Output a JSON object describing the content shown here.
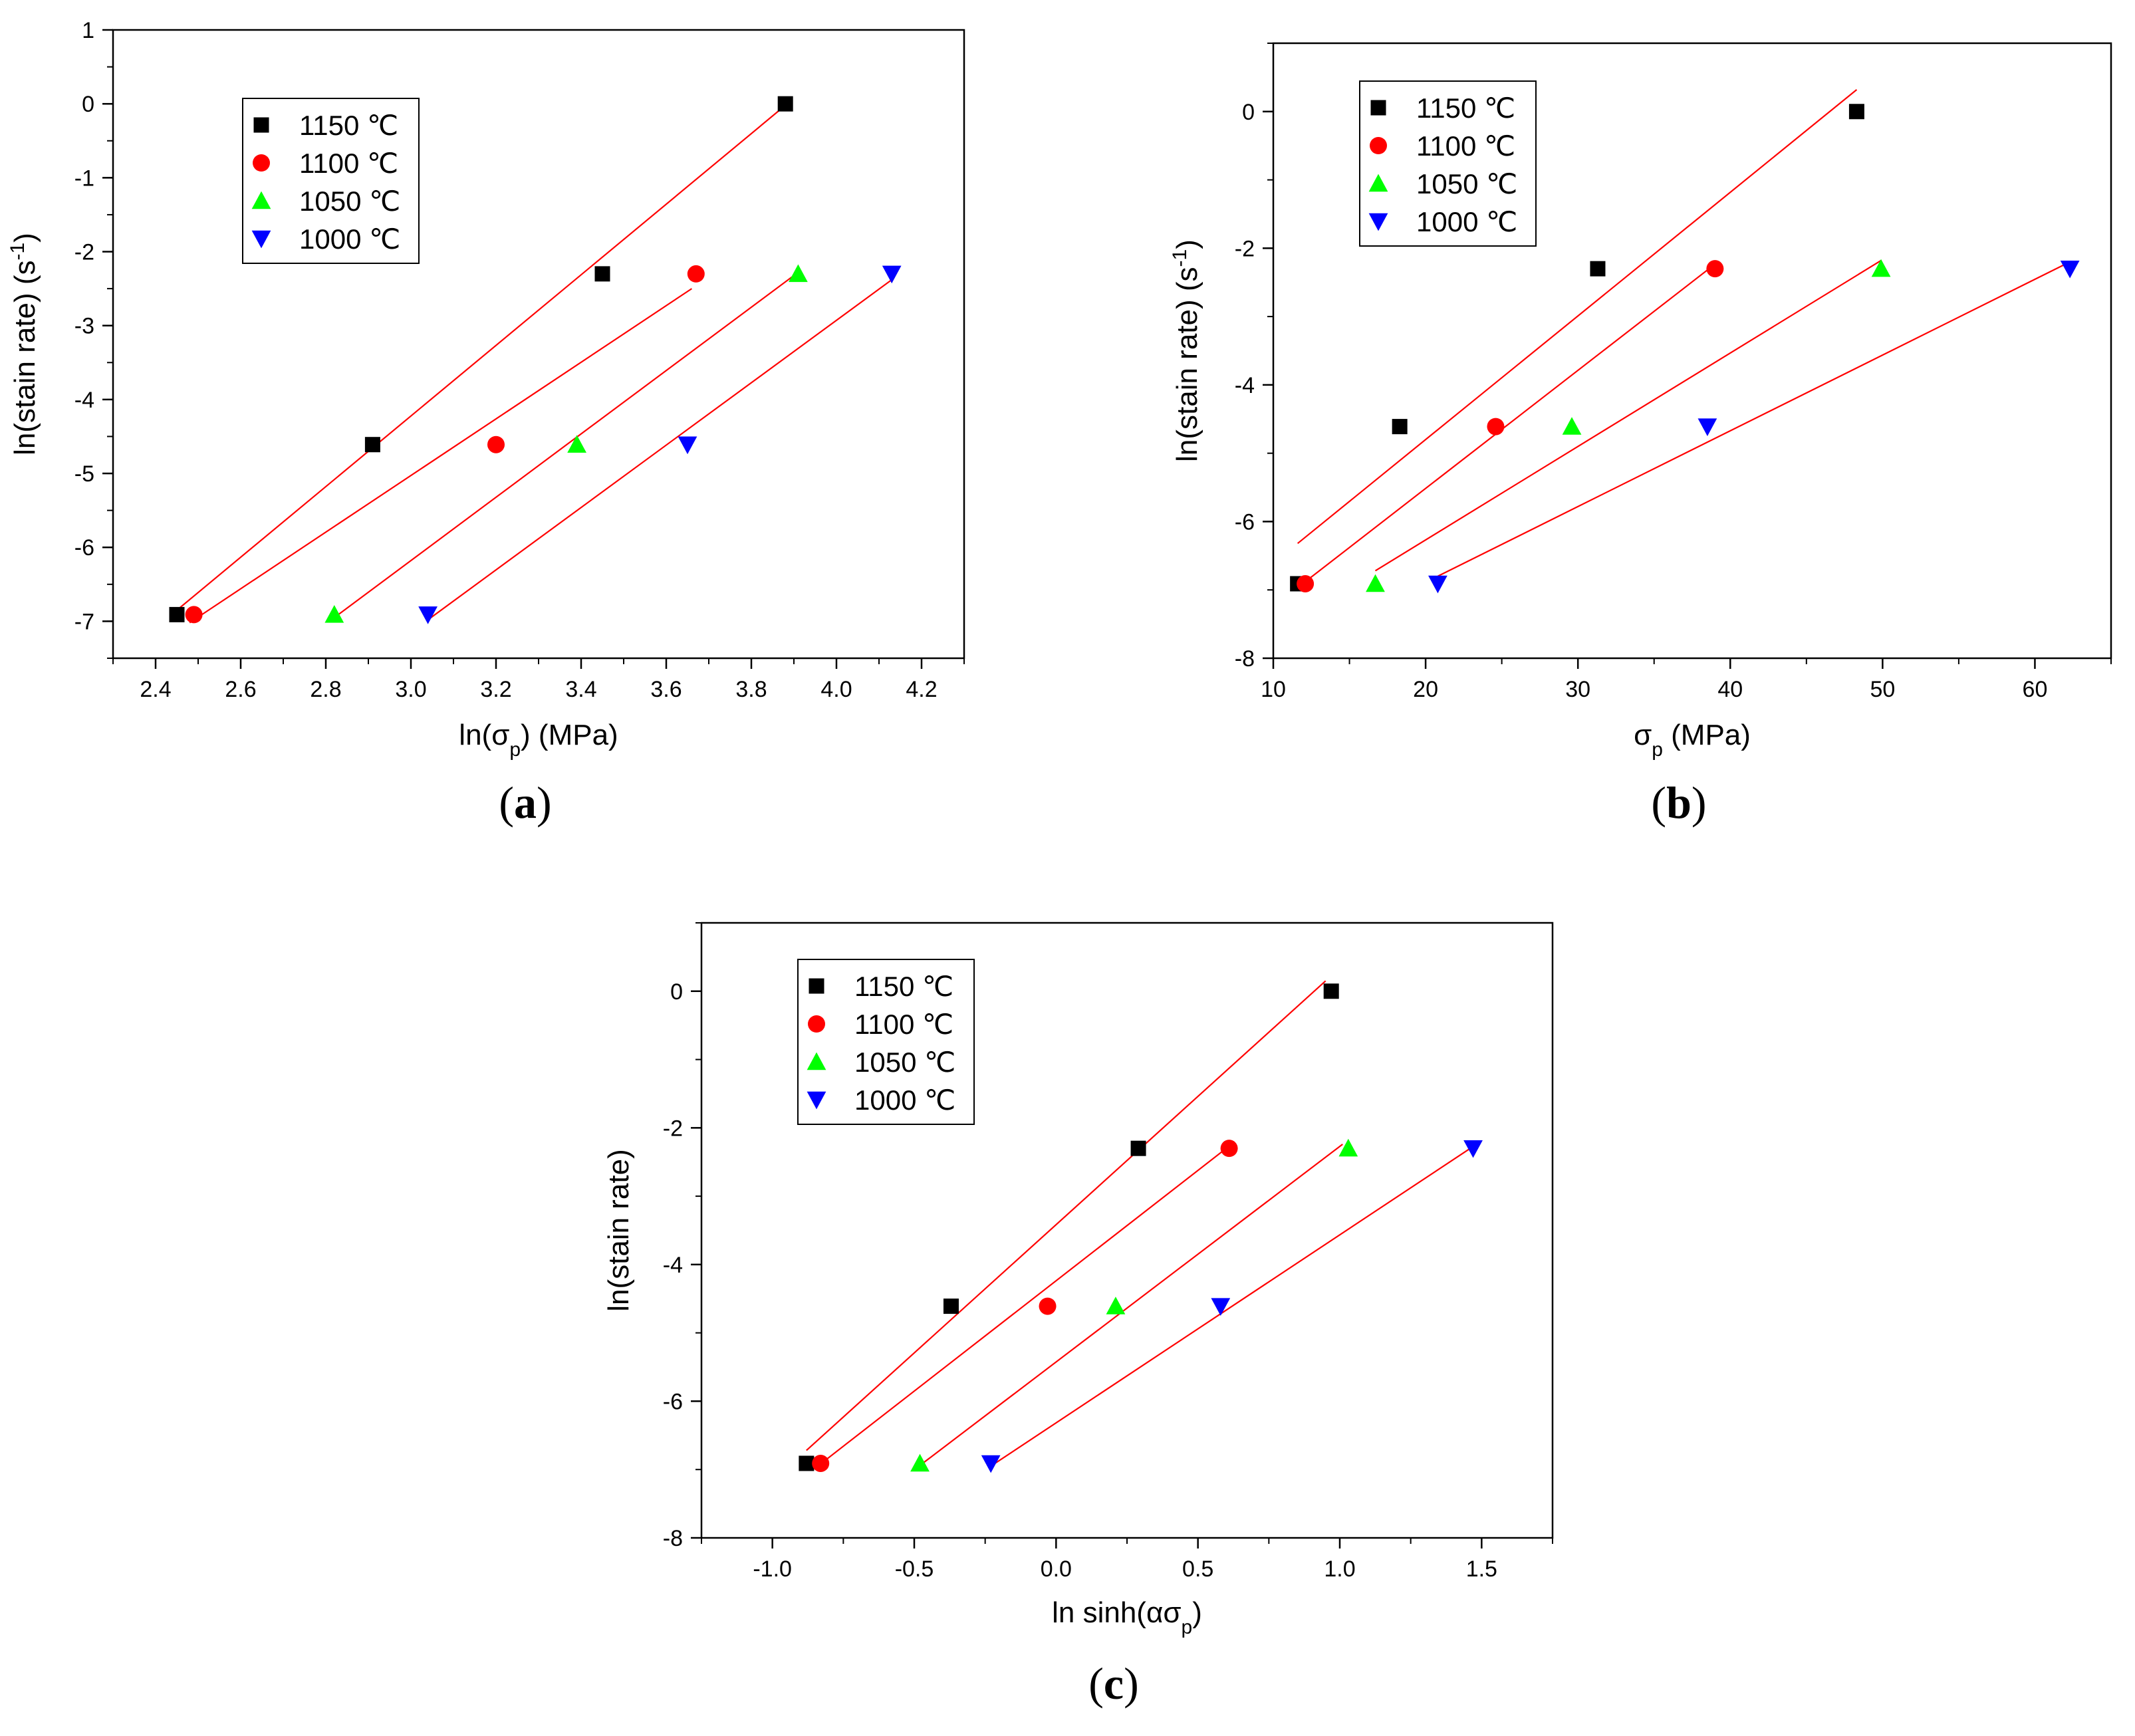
{
  "colors": {
    "s1150": "#000000",
    "s1100": "#ff0000",
    "s1050": "#00ff00",
    "s1000": "#0000ff",
    "fit": "#ff0000"
  },
  "chart_data": [
    {
      "type": "scatter",
      "panel_label": "(a)",
      "xlabel": "ln(σp) (MPa)",
      "ylabel": "ln(stain rate) (s-1)",
      "xlim": [
        2.3,
        4.3
      ],
      "ylim": [
        -7.5,
        1
      ],
      "xticks": [
        2.4,
        2.6,
        2.8,
        3.0,
        3.2,
        3.4,
        3.6,
        3.8,
        4.0,
        4.2
      ],
      "xtick_labels": [
        "2.4",
        "2.6",
        "2.8",
        "3.0",
        "3.2",
        "3.4",
        "3.6",
        "3.8",
        "4.0",
        "4.2"
      ],
      "yticks": [
        1,
        0,
        -1,
        -2,
        -3,
        -4,
        -5,
        -6,
        -7
      ],
      "ytick_labels": [
        "1",
        "0",
        "-1",
        "-2",
        "-3",
        "-4",
        "-5",
        "-6",
        "-7"
      ],
      "legend_position": "top-left",
      "series": [
        {
          "name": "1150 ℃",
          "marker": "square",
          "color": "#000000",
          "x": [
            2.45,
            2.91,
            3.45,
            3.88
          ],
          "y": [
            -6.91,
            -4.61,
            -2.3,
            0.0
          ],
          "fit": {
            "x": [
              2.45,
              3.88
            ],
            "y": [
              -6.85,
              -0.02
            ]
          }
        },
        {
          "name": "1100 ℃",
          "marker": "circle",
          "color": "#ff0000",
          "x": [
            2.49,
            3.2,
            3.67
          ],
          "y": [
            -6.91,
            -4.61,
            -2.3
          ],
          "fit": {
            "x": [
              2.48,
              3.66
            ],
            "y": [
              -7.02,
              -2.5
            ]
          }
        },
        {
          "name": "1050 ℃",
          "marker": "triangle-up",
          "color": "#00ff00",
          "x": [
            2.82,
            3.39,
            3.91
          ],
          "y": [
            -6.91,
            -4.61,
            -2.3
          ],
          "fit": {
            "x": [
              2.82,
              3.91
            ],
            "y": [
              -6.95,
              -2.28
            ]
          }
        },
        {
          "name": "1000 ℃",
          "marker": "triangle-down",
          "color": "#0000ff",
          "x": [
            3.04,
            3.65,
            4.13
          ],
          "y": [
            -6.91,
            -4.61,
            -2.3
          ],
          "fit": {
            "x": [
              3.04,
              4.13
            ],
            "y": [
              -6.98,
              -2.38
            ]
          }
        }
      ]
    },
    {
      "type": "scatter",
      "panel_label": "(b)",
      "xlabel": "σp (MPa)",
      "ylabel": "ln(stain rate) (s-1)",
      "xlim": [
        10,
        65
      ],
      "ylim": [
        -8,
        1
      ],
      "xticks": [
        10,
        20,
        30,
        40,
        50,
        60
      ],
      "xtick_labels": [
        "10",
        "20",
        "30",
        "40",
        "50",
        "60"
      ],
      "yticks": [
        0,
        -2,
        -4,
        -6,
        -8
      ],
      "ytick_labels": [
        "0",
        "-2",
        "-4",
        "-6",
        "-8"
      ],
      "legend_position": "top-left",
      "series": [
        {
          "name": "1150 ℃",
          "marker": "square",
          "color": "#000000",
          "x": [
            11.6,
            18.3,
            31.3,
            48.3
          ],
          "y": [
            -6.91,
            -4.61,
            -2.3,
            0.0
          ],
          "fit": {
            "x": [
              11.6,
              48.3
            ],
            "y": [
              -6.32,
              0.32
            ]
          }
        },
        {
          "name": "1100 ℃",
          "marker": "circle",
          "color": "#ff0000",
          "x": [
            12.1,
            24.6,
            39.0
          ],
          "y": [
            -6.91,
            -4.61,
            -2.3
          ],
          "fit": {
            "x": [
              12.1,
              38.9
            ],
            "y": [
              -6.88,
              -2.25
            ]
          }
        },
        {
          "name": "1050 ℃",
          "marker": "triangle-up",
          "color": "#00ff00",
          "x": [
            16.7,
            29.6,
            49.9
          ],
          "y": [
            -6.91,
            -4.61,
            -2.3
          ],
          "fit": {
            "x": [
              16.7,
              49.9
            ],
            "y": [
              -6.72,
              -2.18
            ]
          }
        },
        {
          "name": "1000 ℃",
          "marker": "triangle-down",
          "color": "#0000ff",
          "x": [
            20.8,
            38.5,
            62.3
          ],
          "y": [
            -6.91,
            -4.61,
            -2.3
          ],
          "fit": {
            "x": [
              20.8,
              62.3
            ],
            "y": [
              -6.8,
              -2.2
            ]
          }
        }
      ]
    },
    {
      "type": "scatter",
      "panel_label": "(c)",
      "xlabel": "ln sinh(ασp)",
      "ylabel": "ln(stain rate)",
      "xlim": [
        -1.25,
        1.75
      ],
      "ylim": [
        -8,
        1
      ],
      "xticks": [
        -1.0,
        -0.5,
        0.0,
        0.5,
        1.0,
        1.5
      ],
      "xtick_labels": [
        "-1.0",
        "-0.5",
        "0.0",
        "0.5",
        "1.0",
        "1.5"
      ],
      "yticks": [
        0,
        -2,
        -4,
        -6,
        -8
      ],
      "ytick_labels": [
        "0",
        "-2",
        "-4",
        "-6",
        "-8"
      ],
      "legend_position": "top-left",
      "series": [
        {
          "name": "1150 ℃",
          "marker": "square",
          "color": "#000000",
          "x": [
            -0.88,
            -0.37,
            0.29,
            0.97
          ],
          "y": [
            -6.91,
            -4.61,
            -2.3,
            0.0
          ],
          "fit": {
            "x": [
              -0.88,
              0.95
            ],
            "y": [
              -6.72,
              0.15
            ]
          }
        },
        {
          "name": "1100 ℃",
          "marker": "circle",
          "color": "#ff0000",
          "x": [
            -0.83,
            -0.03,
            0.61
          ],
          "y": [
            -6.91,
            -4.61,
            -2.3
          ],
          "fit": {
            "x": [
              -0.84,
              0.6
            ],
            "y": [
              -6.95,
              -2.3
            ]
          }
        },
        {
          "name": "1050 ℃",
          "marker": "triangle-up",
          "color": "#00ff00",
          "x": [
            -0.48,
            0.21,
            1.03
          ],
          "y": [
            -6.91,
            -4.61,
            -2.3
          ],
          "fit": {
            "x": [
              -0.48,
              1.01
            ],
            "y": [
              -6.94,
              -2.24
            ]
          }
        },
        {
          "name": "1000 ℃",
          "marker": "triangle-down",
          "color": "#0000ff",
          "x": [
            -0.23,
            0.58,
            1.47
          ],
          "y": [
            -6.91,
            -4.61,
            -2.3
          ],
          "fit": {
            "x": [
              -0.23,
              1.46
            ],
            "y": [
              -6.95,
              -2.3
            ]
          }
        }
      ]
    }
  ]
}
